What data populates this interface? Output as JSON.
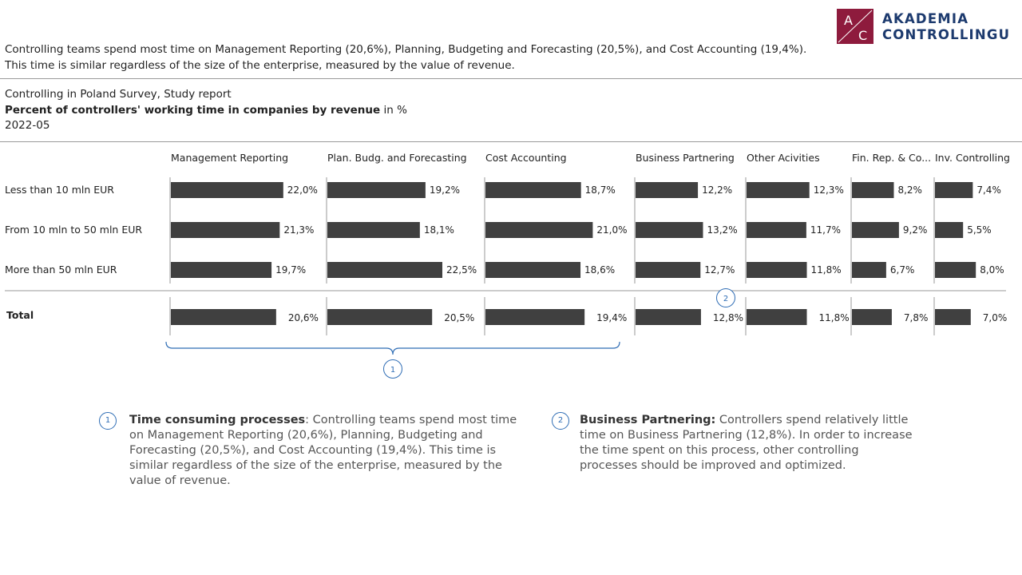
{
  "headline": {
    "line1": "Controlling teams spend most time on Management Reporting (20,6%), Planning, Budgeting and Forecasting (20,5%), and Cost Accounting (19,4%).",
    "line2": "This time is similar regardless of the size of the enterprise, measured by the value of revenue."
  },
  "logo": {
    "letters_top": "A",
    "letters_bottom": "C",
    "line1": "AKADEMIA",
    "line2": "CONTROLLINGU",
    "color": "#8e1b3d",
    "text_color": "#1c3a6e"
  },
  "meta": {
    "source": "Controlling in Poland Survey, Study report",
    "title_bold": "Percent of controllers' working time in companies by revenue",
    "title_unit": " in %",
    "date": "2022-05"
  },
  "chart_data": {
    "type": "bar",
    "orientation": "horizontal",
    "bar_color": "#404040",
    "categories": [
      "Less than 10 mln EUR",
      "From 10 mln to 50 mln EUR",
      "More than 50 mln EUR"
    ],
    "total_label": "Total",
    "series": [
      {
        "name": "Management Reporting",
        "values": [
          22.0,
          21.3,
          19.7
        ],
        "labels": [
          "22,0%",
          "21,3%",
          "19,7%"
        ],
        "total": 20.6,
        "total_label": "20,6%"
      },
      {
        "name": "Plan. Budg. and Forecasting",
        "values": [
          19.2,
          18.1,
          22.5
        ],
        "labels": [
          "19,2%",
          "18,1%",
          "22,5%"
        ],
        "total": 20.5,
        "total_label": "20,5%"
      },
      {
        "name": "Cost Accounting",
        "values": [
          18.7,
          21.0,
          18.6
        ],
        "labels": [
          "18,7%",
          "21,0%",
          "18,6%"
        ],
        "total": 19.4,
        "total_label": "19,4%"
      },
      {
        "name": "Business Partnering",
        "values": [
          12.2,
          13.2,
          12.7
        ],
        "labels": [
          "12,2%",
          "13,2%",
          "12,7%"
        ],
        "total": 12.8,
        "total_label": "12,8%"
      },
      {
        "name": "Other Acivities",
        "values": [
          12.3,
          11.7,
          11.8
        ],
        "labels": [
          "12,3%",
          "11,7%",
          "11,8%"
        ],
        "total": 11.8,
        "total_label": "11,8%"
      },
      {
        "name": "Fin. Rep. & Co...",
        "values": [
          8.2,
          9.2,
          6.7
        ],
        "labels": [
          "8,2%",
          "9,2%",
          "6,7%"
        ],
        "total": 7.8,
        "total_label": "7,8%"
      },
      {
        "name": "Inv. Controlling",
        "values": [
          7.4,
          5.5,
          8.0
        ],
        "labels": [
          "7,4%",
          "5,5%",
          "8,0%"
        ],
        "total": 7.0,
        "total_label": "7,0%"
      }
    ],
    "annotations": [
      {
        "marker": "1",
        "spans": [
          "Management Reporting",
          "Plan. Budg. and Forecasting",
          "Cost Accounting"
        ]
      },
      {
        "marker": "2",
        "target": "Business Partnering"
      }
    ]
  },
  "notes": [
    {
      "marker": "1",
      "title": "Time consuming processes",
      "text": ": Controlling teams spend most time on Management Reporting (20,6%), Planning, Budgeting and Forecasting (20,5%), and Cost Accounting (19,4%). This time is similar regardless of the size of the enterprise, measured by the value of revenue."
    },
    {
      "marker": "2",
      "title": "Business Partnering:",
      "text": " Controllers spend relatively little time on Business Partnering (12,8%). In order to increase the time spent on this process, other controlling processes should be improved and optimized."
    }
  ]
}
